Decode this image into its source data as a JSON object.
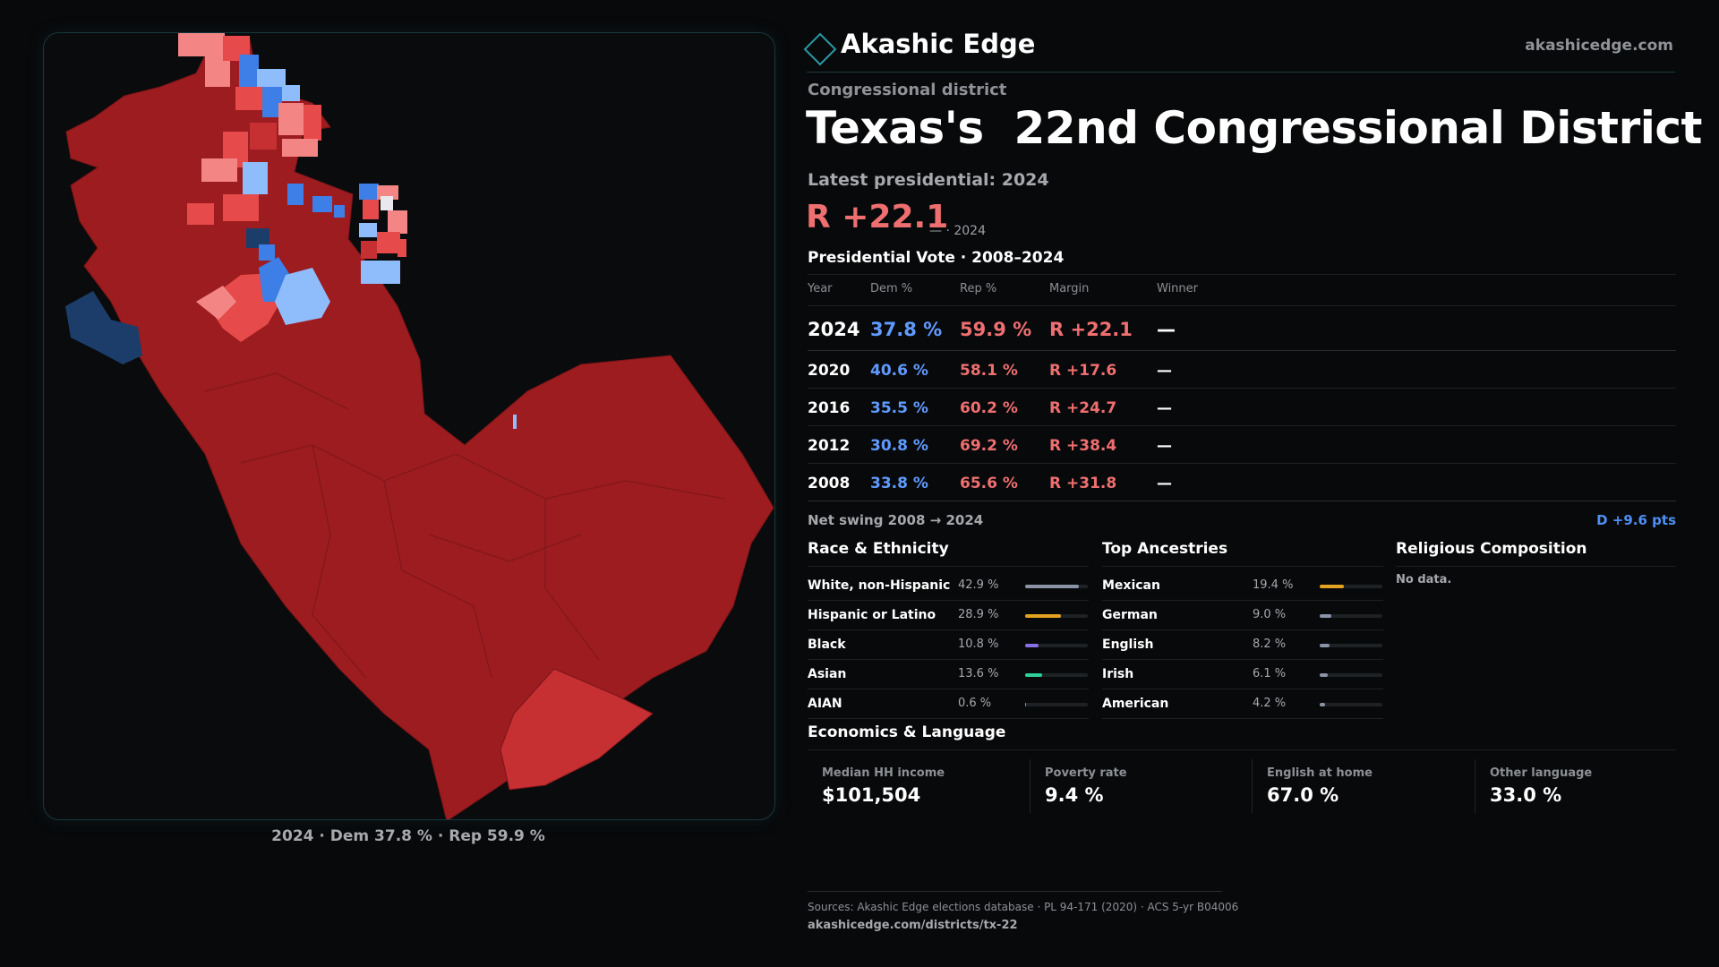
{
  "map": {
    "caption": "2024 · Dem 37.8 % · Rep 59.9 %",
    "colors": {
      "strong_rep": "#9c1c1f",
      "rep": "#c63033",
      "lean_rep": "#e74a4a",
      "tilt_rep": "#f48585",
      "tilt_dem": "#8fbdfb",
      "lean_dem": "#3d7fe6",
      "strong_dem": "#1c3d6a"
    }
  },
  "brand": {
    "name": "Akashic Edge",
    "url": "akashicedge.com"
  },
  "eyebrow": "Congressional district",
  "title": "Texas's  22nd Congressional District",
  "latest_label": "Latest presidential: 2024",
  "margin": {
    "value": "R +22.1",
    "sub": "— · 2024"
  },
  "vote": {
    "title": "Presidential Vote · 2008–2024",
    "headers": {
      "year": "Year",
      "dem": "Dem %",
      "rep": "Rep %",
      "margin": "Margin",
      "winner": "Winner"
    },
    "rows": [
      {
        "year": "2024",
        "dem": "37.8 %",
        "rep": "59.9 %",
        "margin": "R +22.1",
        "winner": "—"
      },
      {
        "year": "2020",
        "dem": "40.6 %",
        "rep": "58.1 %",
        "margin": "R +17.6",
        "winner": "—"
      },
      {
        "year": "2016",
        "dem": "35.5 %",
        "rep": "60.2 %",
        "margin": "R +24.7",
        "winner": "—"
      },
      {
        "year": "2012",
        "dem": "30.8 %",
        "rep": "69.2 %",
        "margin": "R +38.4",
        "winner": "—"
      },
      {
        "year": "2008",
        "dem": "33.8 %",
        "rep": "65.6 %",
        "margin": "R +31.8",
        "winner": "—"
      }
    ],
    "swing_label": "Net swing 2008 → 2024",
    "swing_value": "D +9.6 pts"
  },
  "race": {
    "title": "Race & Ethnicity",
    "items": [
      {
        "label": "White, non-Hispanic",
        "value": "42.9 %",
        "share": 0.429,
        "color": "#8b94a6"
      },
      {
        "label": "Hispanic or Latino",
        "value": "28.9 %",
        "share": 0.289,
        "color": "#e3a21f"
      },
      {
        "label": "Black",
        "value": "10.8 %",
        "share": 0.108,
        "color": "#8a6ee6"
      },
      {
        "label": "Asian",
        "value": "13.6 %",
        "share": 0.136,
        "color": "#2fcf98"
      },
      {
        "label": "AIAN",
        "value": "0.6 %",
        "share": 0.006,
        "color": "#8b94a6"
      }
    ]
  },
  "ancestry": {
    "title": "Top Ancestries",
    "items": [
      {
        "label": "Mexican",
        "value": "19.4 %",
        "share": 0.194,
        "color": "#e3a21f"
      },
      {
        "label": "German",
        "value": "9.0 %",
        "share": 0.09,
        "color": "#8b94a6"
      },
      {
        "label": "English",
        "value": "8.2 %",
        "share": 0.082,
        "color": "#8b94a6"
      },
      {
        "label": "Irish",
        "value": "6.1 %",
        "share": 0.061,
        "color": "#8b94a6"
      },
      {
        "label": "American",
        "value": "4.2 %",
        "share": 0.042,
        "color": "#8b94a6"
      }
    ]
  },
  "religion": {
    "title": "Religious Composition",
    "empty": "No data."
  },
  "econ": {
    "title": "Economics & Language",
    "items": [
      {
        "label": "Median HH income",
        "value": "$101,504"
      },
      {
        "label": "Poverty rate",
        "value": "9.4 %"
      },
      {
        "label": "English at home",
        "value": "67.0 %"
      },
      {
        "label": "Other language",
        "value": "33.0 %"
      }
    ]
  },
  "sources": {
    "line": "Sources: Akashic Edge elections database · PL 94-171 (2020) · ACS 5-yr B04006",
    "url": "akashicedge.com/districts/tx-22"
  }
}
